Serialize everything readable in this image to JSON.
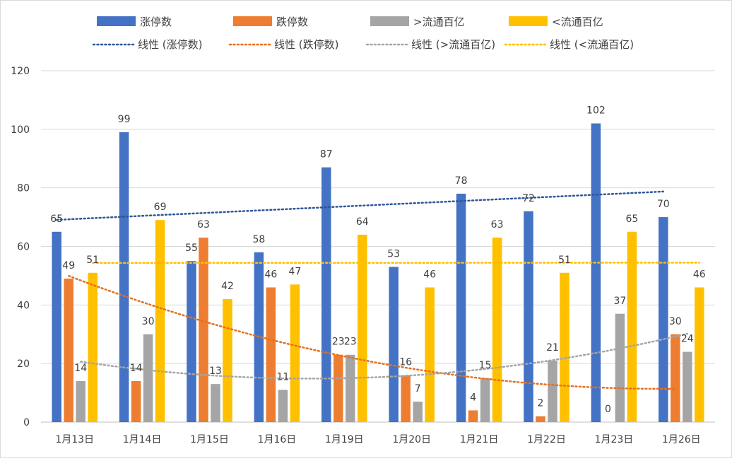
{
  "chart_data": {
    "type": "bar",
    "title": "",
    "xlabel": "",
    "ylabel": "",
    "ylim": [
      0,
      120
    ],
    "yticks": [
      0,
      20,
      40,
      60,
      80,
      100,
      120
    ],
    "grid": true,
    "legend_position": "top",
    "categories": [
      "1月13日",
      "1月14日",
      "1月15日",
      "1月16日",
      "1月19日",
      "1月20日",
      "1月21日",
      "1月22日",
      "1月23日",
      "1月26日"
    ],
    "series": [
      {
        "name": "涨停数",
        "color": "#4472C4",
        "values": [
          65,
          99,
          55,
          58,
          87,
          53,
          78,
          72,
          102,
          70
        ]
      },
      {
        "name": "跌停数",
        "color": "#ED7D31",
        "values": [
          49,
          14,
          63,
          46,
          23,
          16,
          4,
          2,
          0,
          30
        ]
      },
      {
        "name": ">流通百亿",
        "color": "#A5A5A5",
        "values": [
          14,
          30,
          13,
          11,
          23,
          7,
          15,
          21,
          37,
          24
        ]
      },
      {
        "name": "<流通百亿",
        "color": "#FFC000",
        "values": [
          51,
          69,
          42,
          47,
          64,
          46,
          63,
          51,
          65,
          46
        ]
      }
    ],
    "trendlines": [
      {
        "name": "线性 (涨停数)",
        "color": "#2E5597",
        "series_index": 0,
        "type": "linear"
      },
      {
        "name": "线性 (跌停数)",
        "color": "#E4701E",
        "series_index": 1,
        "type": "polynomial"
      },
      {
        "name": "线性 (>流通百亿)",
        "color": "#A5A5A5",
        "series_index": 2,
        "type": "polynomial"
      },
      {
        "name": "线性 (<流通百亿)",
        "color": "#FFC000",
        "series_index": 3,
        "type": "linear"
      }
    ]
  }
}
